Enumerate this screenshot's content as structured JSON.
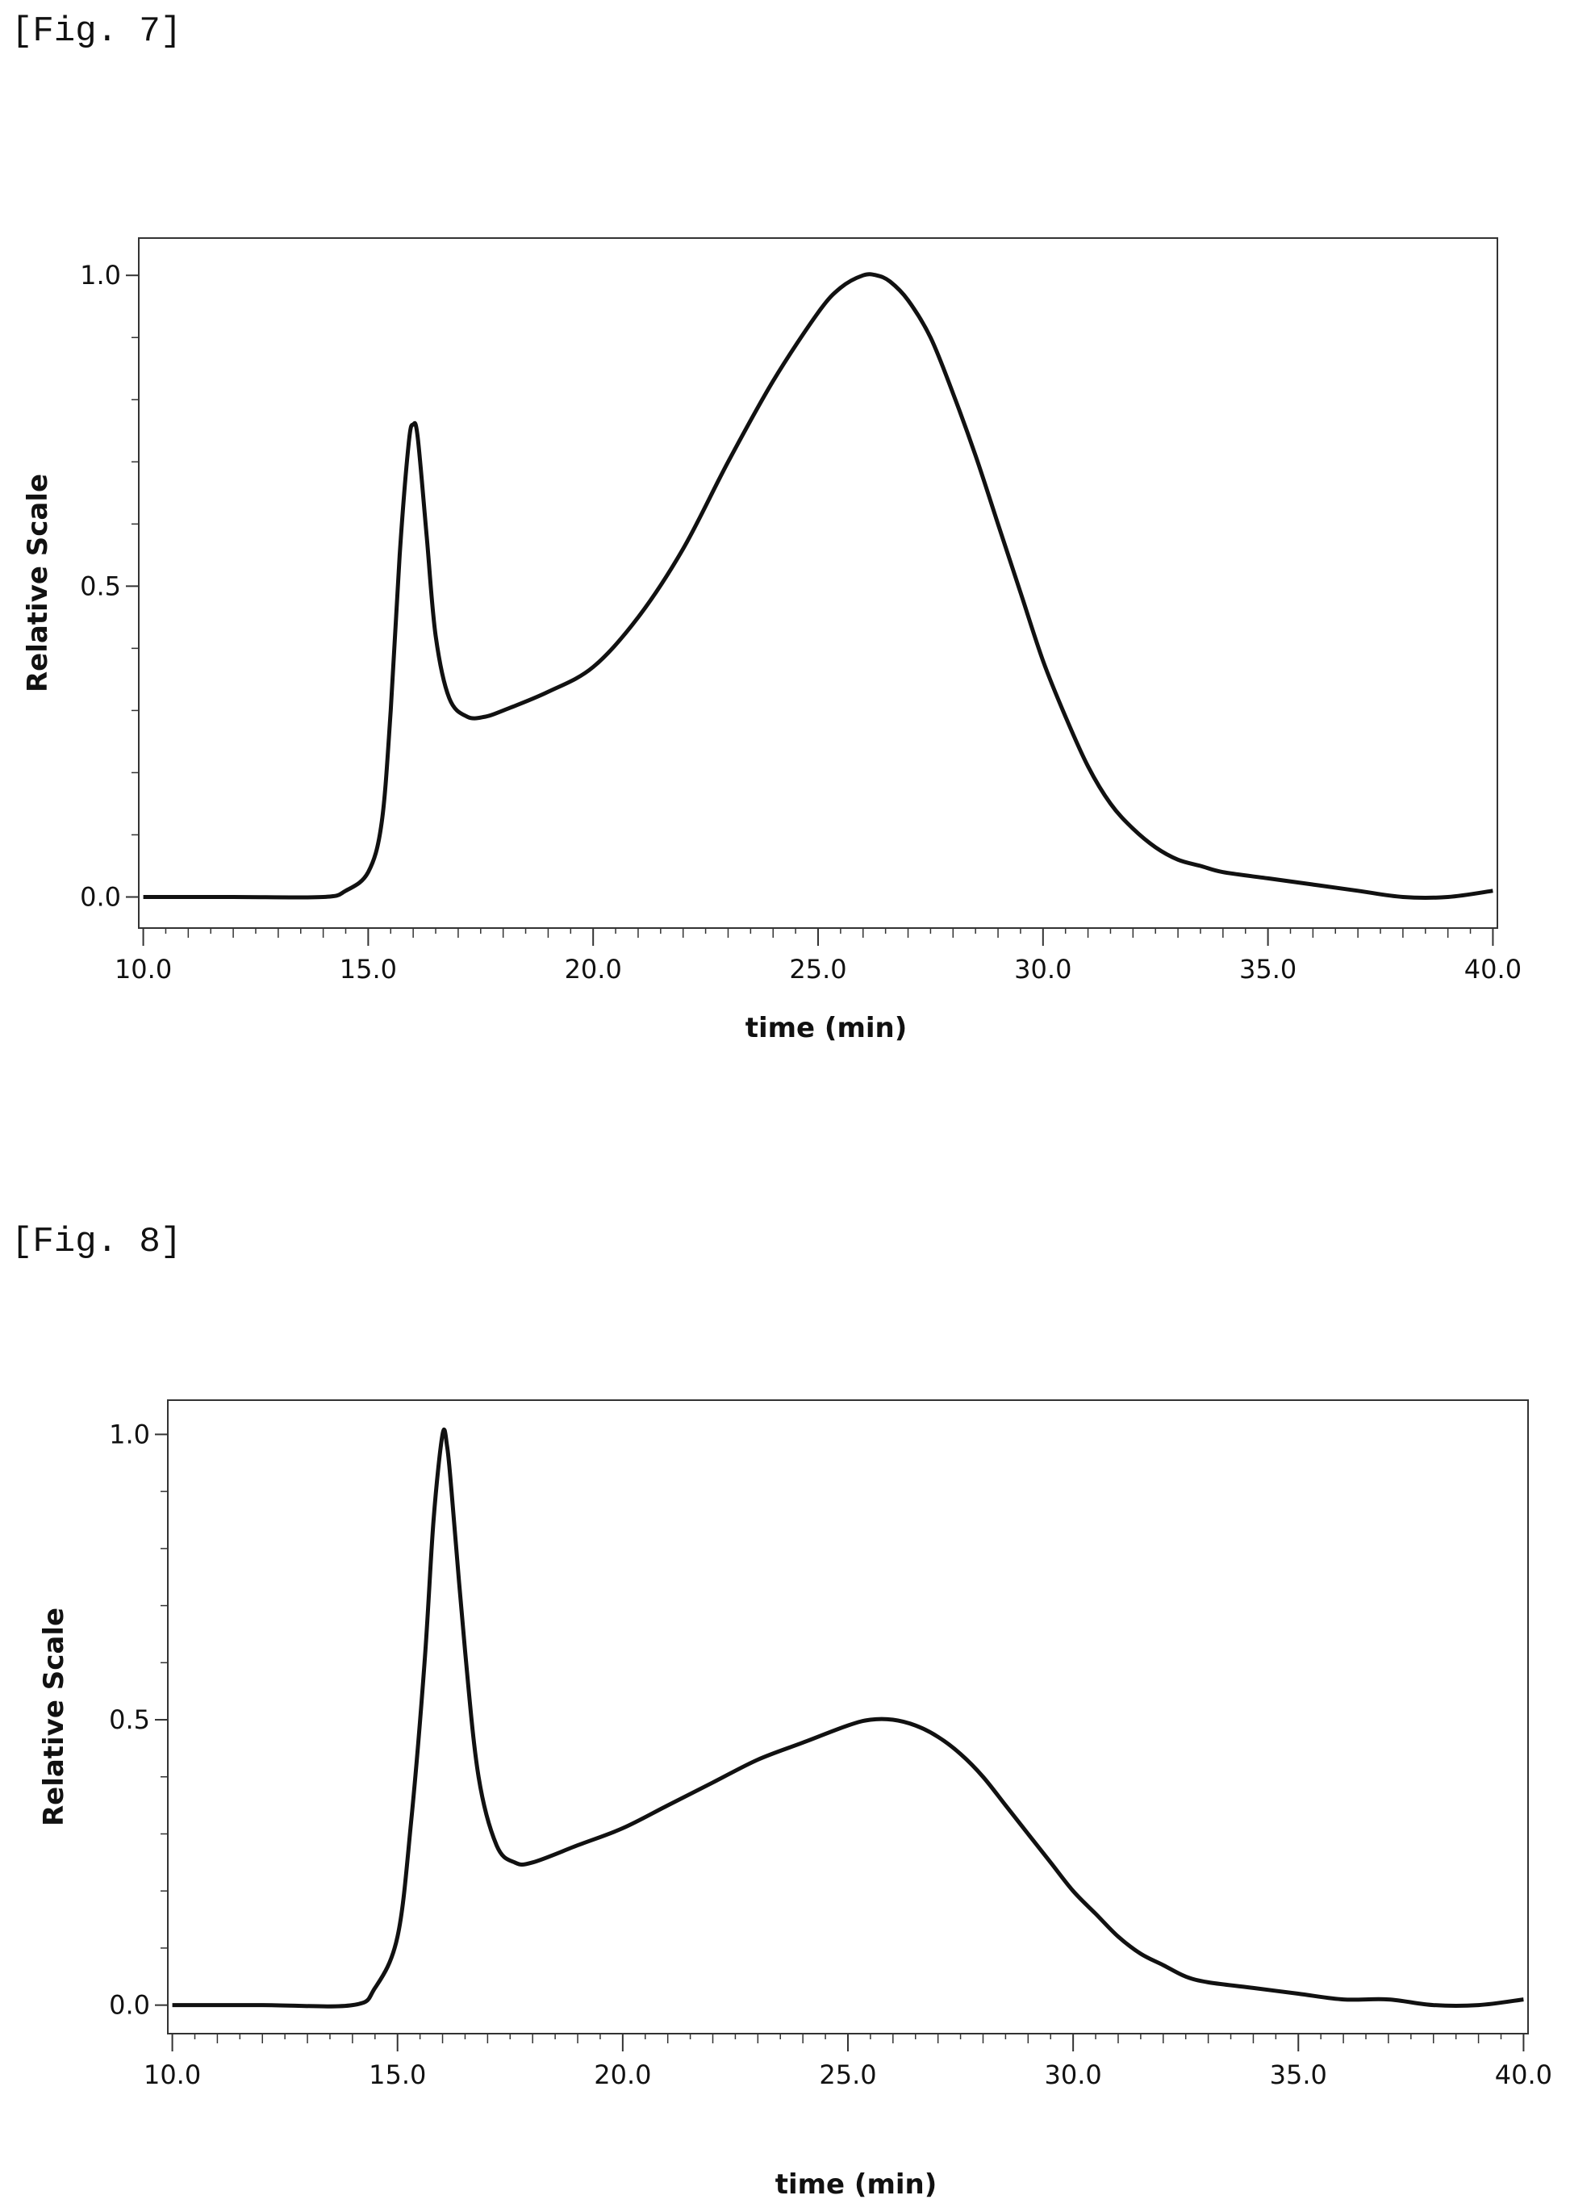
{
  "figures": [
    {
      "label": "[Fig. 7]",
      "chart_data": {
        "type": "line",
        "title": "",
        "xlabel": "time (min)",
        "ylabel": "Relative Scale",
        "xlim": [
          9.9,
          40.1
        ],
        "ylim": [
          -0.05,
          1.06
        ],
        "xticks": [
          "10.0",
          "15.0",
          "20.0",
          "25.0",
          "30.0",
          "35.0",
          "40.0"
        ],
        "yticks": [
          "0.0",
          "0.5",
          "1.0"
        ],
        "grid": false,
        "series": [
          {
            "x": [
              10.0,
              12.0,
              14.0,
              14.5,
              15.0,
              15.3,
              15.5,
              15.7,
              15.9,
              16.0,
              16.1,
              16.3,
              16.5,
              16.8,
              17.2,
              17.6,
              18.0,
              19.0,
              20.0,
              21.0,
              22.0,
              23.0,
              24.0,
              25.0,
              25.5,
              26.0,
              26.3,
              26.6,
              27.0,
              27.5,
              28.0,
              28.5,
              29.0,
              29.5,
              30.0,
              30.5,
              31.0,
              31.5,
              32.0,
              32.5,
              33.0,
              33.5,
              34.0,
              35.0,
              36.0,
              37.0,
              38.0,
              39.0,
              40.0
            ],
            "y": [
              0.0,
              0.0,
              0.0,
              0.01,
              0.04,
              0.12,
              0.3,
              0.55,
              0.73,
              0.76,
              0.74,
              0.58,
              0.42,
              0.32,
              0.29,
              0.29,
              0.3,
              0.33,
              0.37,
              0.45,
              0.56,
              0.7,
              0.83,
              0.94,
              0.98,
              1.0,
              1.0,
              0.99,
              0.96,
              0.9,
              0.81,
              0.71,
              0.6,
              0.49,
              0.38,
              0.29,
              0.21,
              0.15,
              0.11,
              0.08,
              0.06,
              0.05,
              0.04,
              0.03,
              0.02,
              0.01,
              0.0,
              0.0,
              0.01
            ]
          }
        ]
      }
    },
    {
      "label": "[Fig. 8]",
      "chart_data": {
        "type": "line",
        "title": "",
        "xlabel": "time (min)",
        "ylabel": "Relative Scale",
        "xlim": [
          9.9,
          40.1
        ],
        "ylim": [
          -0.05,
          1.06
        ],
        "xticks": [
          "10.0",
          "15.0",
          "20.0",
          "25.0",
          "30.0",
          "35.0",
          "40.0"
        ],
        "yticks": [
          "0.0",
          "0.5",
          "1.0"
        ],
        "grid": false,
        "series": [
          {
            "x": [
              10.0,
              12.0,
              14.0,
              14.5,
              15.0,
              15.3,
              15.6,
              15.8,
              16.0,
              16.1,
              16.2,
              16.5,
              16.8,
              17.2,
              17.6,
              18.0,
              19.0,
              20.0,
              21.0,
              22.0,
              23.0,
              24.0,
              25.0,
              25.5,
              26.0,
              26.5,
              27.0,
              27.5,
              28.0,
              28.5,
              29.0,
              29.5,
              30.0,
              30.5,
              31.0,
              31.5,
              32.0,
              32.5,
              33.0,
              34.0,
              35.0,
              36.0,
              37.0,
              38.0,
              39.0,
              40.0
            ],
            "y": [
              0.0,
              0.0,
              0.0,
              0.03,
              0.12,
              0.32,
              0.6,
              0.85,
              1.0,
              0.98,
              0.9,
              0.62,
              0.4,
              0.28,
              0.25,
              0.25,
              0.28,
              0.31,
              0.35,
              0.39,
              0.43,
              0.46,
              0.49,
              0.5,
              0.5,
              0.49,
              0.47,
              0.44,
              0.4,
              0.35,
              0.3,
              0.25,
              0.2,
              0.16,
              0.12,
              0.09,
              0.07,
              0.05,
              0.04,
              0.03,
              0.02,
              0.01,
              0.01,
              0.0,
              0.0,
              0.01
            ]
          }
        ]
      }
    }
  ]
}
